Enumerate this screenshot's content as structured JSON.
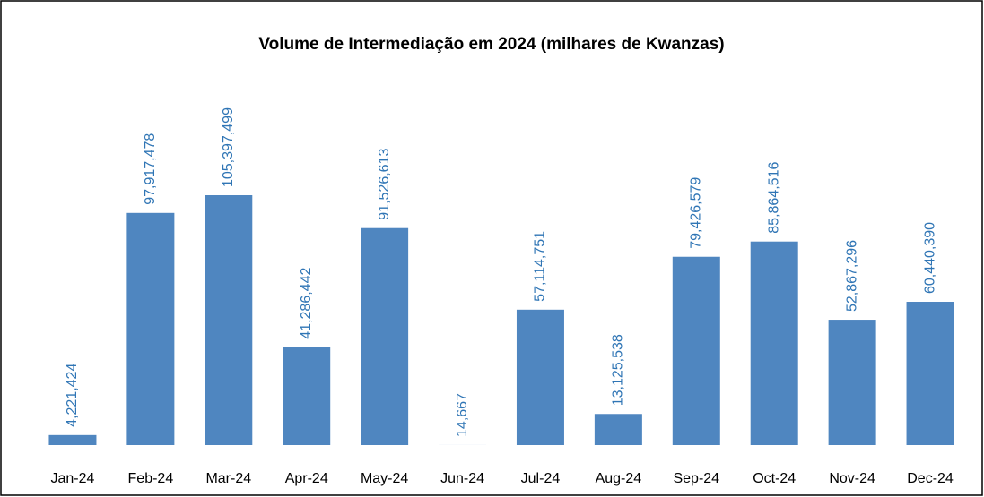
{
  "chart_data": {
    "type": "bar",
    "title": "Volume de Intermediação em 2024 (milhares de Kwanzas)",
    "categories": [
      "Jan-24",
      "Feb-24",
      "Mar-24",
      "Apr-24",
      "May-24",
      "Jun-24",
      "Jul-24",
      "Aug-24",
      "Sep-24",
      "Oct-24",
      "Nov-24",
      "Dec-24"
    ],
    "values": [
      4221424,
      97917478,
      105397499,
      41286442,
      91526613,
      14667,
      57114751,
      13125538,
      79426579,
      85864516,
      52867296,
      60440390
    ],
    "value_labels": [
      "4,221,424",
      "97,917,478",
      "105,397,499",
      "41,286,442",
      "91,526,613",
      "14,667",
      "57,114,751",
      "13,125,538",
      "79,426,579",
      "85,864,516",
      "52,867,296",
      "60,440,390"
    ],
    "color": "#4f86c0"
  }
}
